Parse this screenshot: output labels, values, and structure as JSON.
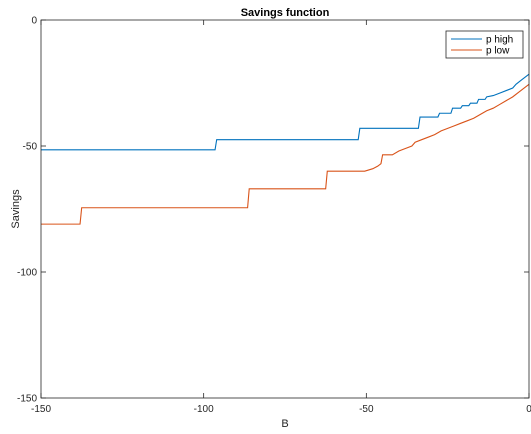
{
  "chart_data": {
    "type": "line",
    "title": "Savings function",
    "xlabel": "B",
    "ylabel": "Savings",
    "xlim": [
      -150,
      0
    ],
    "ylim": [
      -150,
      0
    ],
    "xticks": [
      -150,
      -100,
      -50,
      0
    ],
    "yticks": [
      -150,
      -100,
      -50,
      0
    ],
    "grid": false,
    "legend": "top-right",
    "series": [
      {
        "name": "p high",
        "color": "#0072BD",
        "points": [
          [
            -150,
            -51.5
          ],
          [
            -96.5,
            -51.5
          ],
          [
            -96,
            -47.5
          ],
          [
            -52.5,
            -47.5
          ],
          [
            -52,
            -43
          ],
          [
            -34,
            -43
          ],
          [
            -33.5,
            -38.5
          ],
          [
            -28,
            -38.5
          ],
          [
            -27.5,
            -37
          ],
          [
            -24,
            -37
          ],
          [
            -23.5,
            -35
          ],
          [
            -21,
            -35
          ],
          [
            -20.5,
            -34
          ],
          [
            -18.5,
            -34
          ],
          [
            -18,
            -33
          ],
          [
            -16,
            -33
          ],
          [
            -15.5,
            -31.5
          ],
          [
            -13.5,
            -31.5
          ],
          [
            -13,
            -30.5
          ],
          [
            -11,
            -30
          ],
          [
            -9,
            -29
          ],
          [
            -7,
            -28
          ],
          [
            -5,
            -27
          ],
          [
            -4,
            -25.5
          ],
          [
            -2.5,
            -24
          ],
          [
            -1,
            -22.5
          ],
          [
            0,
            -21.5
          ]
        ]
      },
      {
        "name": "p low",
        "color": "#D95319",
        "points": [
          [
            -150,
            -81
          ],
          [
            -138,
            -81
          ],
          [
            -137.5,
            -74.5
          ],
          [
            -86.5,
            -74.5
          ],
          [
            -86,
            -67
          ],
          [
            -62.5,
            -67
          ],
          [
            -62,
            -60
          ],
          [
            -50.5,
            -60
          ],
          [
            -48,
            -59
          ],
          [
            -46.5,
            -58
          ],
          [
            -45.5,
            -57
          ],
          [
            -45,
            -53.5
          ],
          [
            -42,
            -53.5
          ],
          [
            -40,
            -52
          ],
          [
            -38,
            -51
          ],
          [
            -36,
            -50
          ],
          [
            -35,
            -48.5
          ],
          [
            -33,
            -47.5
          ],
          [
            -31,
            -46.5
          ],
          [
            -29,
            -45.5
          ],
          [
            -27,
            -44
          ],
          [
            -25,
            -43
          ],
          [
            -23,
            -42
          ],
          [
            -21,
            -41
          ],
          [
            -19,
            -40
          ],
          [
            -17,
            -39
          ],
          [
            -15,
            -37.5
          ],
          [
            -13,
            -36
          ],
          [
            -11,
            -35
          ],
          [
            -9,
            -33.5
          ],
          [
            -7,
            -32
          ],
          [
            -5,
            -30.5
          ],
          [
            -3,
            -28.5
          ],
          [
            -1.5,
            -27
          ],
          [
            0,
            -25.5
          ]
        ]
      }
    ]
  }
}
